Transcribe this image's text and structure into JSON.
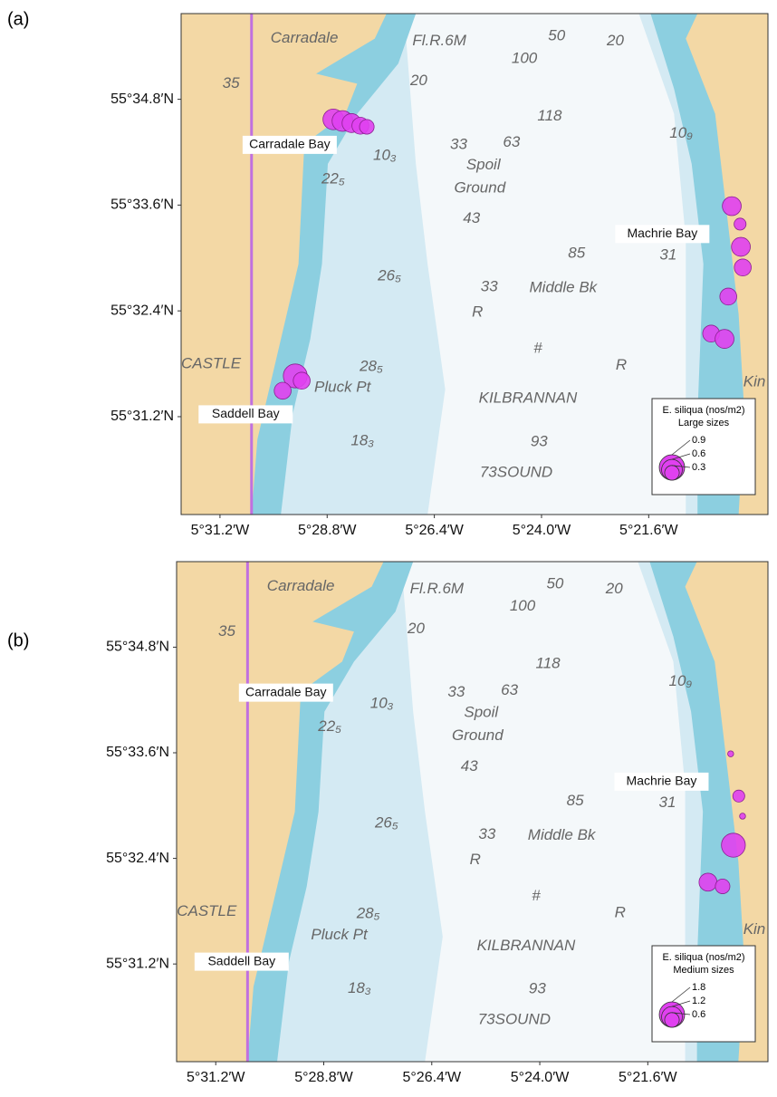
{
  "map_labels": [
    "Carradale",
    "Fl.R.6M",
    "35",
    "20",
    "50",
    "20",
    "100",
    "118",
    "33",
    "63",
    "Spoil",
    "Ground",
    "43",
    "85",
    "33",
    "Middle Bk",
    "R",
    "#",
    "R",
    "KILBRANNAN",
    "93",
    "73SOUND",
    "22₅",
    "26₅",
    "28₅",
    "18₃",
    "10₃",
    "10₉",
    "31",
    "CASTLE",
    "Pluck Pt",
    "Kin"
  ],
  "places": [
    "Carradale Bay",
    "Machrie Bay",
    "Saddell Bay"
  ],
  "xlim": [
    -5.5345,
    -5.3155
  ],
  "ylim": [
    55.5015,
    55.5962
  ],
  "xticks": [
    {
      "value": -5.52,
      "label": "5°31.2′W"
    },
    {
      "value": -5.48,
      "label": "5°28.8′W"
    },
    {
      "value": -5.44,
      "label": "5°26.4′W"
    },
    {
      "value": -5.4,
      "label": "5°24.0′W"
    },
    {
      "value": -5.36,
      "label": "5°21.6′W"
    }
  ],
  "yticks": [
    {
      "value": 55.58,
      "label": "55°34.8′N"
    },
    {
      "value": 55.56,
      "label": "55°33.6′N"
    },
    {
      "value": 55.54,
      "label": "55°32.4′N"
    },
    {
      "value": 55.52,
      "label": "55°31.2′N"
    }
  ],
  "bubble_color": "#e040f0",
  "panels": [
    {
      "label": "(a)",
      "legend": {
        "title": "E. siliqua (nos/m2)",
        "subtitle": "Large sizes",
        "ticks": [
          0.9,
          0.6,
          0.3
        ]
      },
      "points": [
        {
          "lon": -5.4777,
          "lat": 55.5762,
          "value": 0.6
        },
        {
          "lon": -5.4743,
          "lat": 55.5759,
          "value": 0.6
        },
        {
          "lon": -5.4709,
          "lat": 55.5755,
          "value": 0.5
        },
        {
          "lon": -5.4676,
          "lat": 55.575,
          "value": 0.4
        },
        {
          "lon": -5.4652,
          "lat": 55.5748,
          "value": 0.3
        },
        {
          "lon": -5.4919,
          "lat": 55.5277,
          "value": 0.8
        },
        {
          "lon": -5.4895,
          "lat": 55.5268,
          "value": 0.4
        },
        {
          "lon": -5.4966,
          "lat": 55.5249,
          "value": 0.4
        },
        {
          "lon": -5.329,
          "lat": 55.5598,
          "value": 0.5
        },
        {
          "lon": -5.3259,
          "lat": 55.5564,
          "value": 0.2
        },
        {
          "lon": -5.3256,
          "lat": 55.5521,
          "value": 0.5
        },
        {
          "lon": -5.3249,
          "lat": 55.5482,
          "value": 0.4
        },
        {
          "lon": -5.3303,
          "lat": 55.5427,
          "value": 0.4
        },
        {
          "lon": -5.3367,
          "lat": 55.5357,
          "value": 0.4
        },
        {
          "lon": -5.3317,
          "lat": 55.5347,
          "value": 0.5
        }
      ]
    },
    {
      "label": "(b)",
      "legend": {
        "title": "E. siliqua (nos/m2)",
        "subtitle": "Medium sizes",
        "ticks": [
          1.8,
          1.2,
          0.6
        ]
      },
      "points": [
        {
          "lon": -5.3293,
          "lat": 55.5598,
          "value": 0.1
        },
        {
          "lon": -5.3263,
          "lat": 55.5518,
          "value": 0.4
        },
        {
          "lon": -5.3249,
          "lat": 55.548,
          "value": 0.1
        },
        {
          "lon": -5.3283,
          "lat": 55.5425,
          "value": 1.6
        },
        {
          "lon": -5.3377,
          "lat": 55.5355,
          "value": 0.9
        },
        {
          "lon": -5.3323,
          "lat": 55.5347,
          "value": 0.6
        }
      ]
    }
  ]
}
